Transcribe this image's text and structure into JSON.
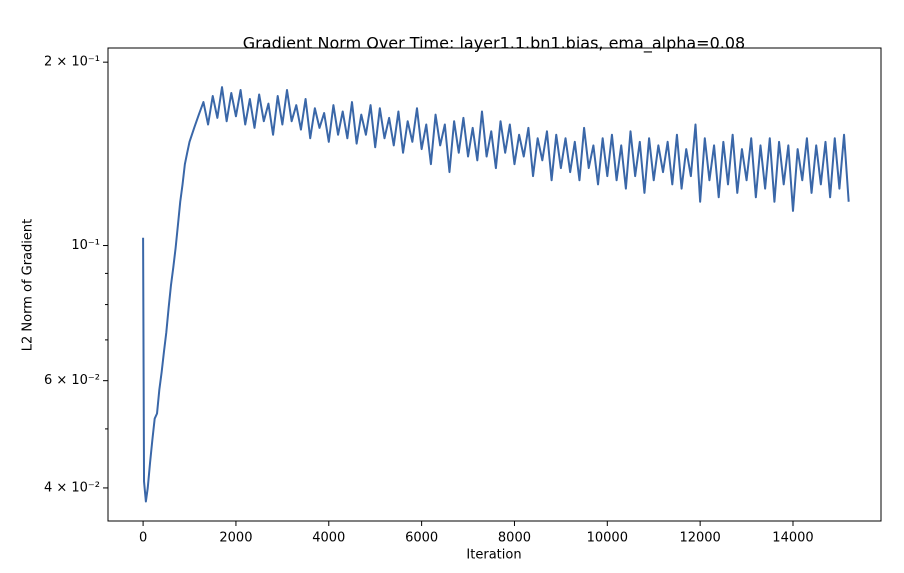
{
  "chart_data": {
    "type": "line",
    "title": "Gradient Norm Over Time: layer1.1.bn1.bias, ema_alpha=0.08",
    "xlabel": "Iteration",
    "ylabel": "L2 Norm of Gradient",
    "color": "#3a67a8",
    "yscale": "log",
    "xlim": [
      -756,
      15896
    ],
    "ylim": [
      0.0353,
      0.211
    ],
    "xticks": [
      0,
      2000,
      4000,
      6000,
      8000,
      10000,
      12000,
      14000
    ],
    "yticks": [
      {
        "value": 0.04,
        "label": "4 × 10⁻²"
      },
      {
        "value": 0.06,
        "label": "6 × 10⁻²"
      },
      {
        "value": 0.1,
        "label": "10⁻¹"
      },
      {
        "value": 0.2,
        "label": "2 × 10⁻¹"
      }
    ],
    "yminorticks": [
      0.05,
      0.07,
      0.08,
      0.09
    ],
    "x": [
      0,
      20,
      60,
      100,
      150,
      200,
      250,
      300,
      350,
      400,
      450,
      500,
      550,
      600,
      650,
      700,
      750,
      800,
      850,
      900,
      950,
      1000,
      1100,
      1200,
      1300,
      1400,
      1500,
      1600,
      1700,
      1800,
      1900,
      2000,
      2100,
      2200,
      2300,
      2400,
      2500,
      2600,
      2700,
      2800,
      2900,
      3000,
      3100,
      3200,
      3300,
      3400,
      3500,
      3600,
      3700,
      3800,
      3900,
      4000,
      4100,
      4200,
      4300,
      4400,
      4500,
      4600,
      4700,
      4800,
      4900,
      5000,
      5100,
      5200,
      5300,
      5400,
      5500,
      5600,
      5700,
      5800,
      5900,
      6000,
      6100,
      6200,
      6300,
      6400,
      6500,
      6600,
      6700,
      6800,
      6900,
      7000,
      7100,
      7200,
      7300,
      7400,
      7500,
      7600,
      7700,
      7800,
      7900,
      8000,
      8100,
      8200,
      8300,
      8400,
      8500,
      8600,
      8700,
      8800,
      8900,
      9000,
      9100,
      9200,
      9300,
      9400,
      9500,
      9600,
      9700,
      9800,
      9900,
      10000,
      10100,
      10200,
      10300,
      10400,
      10500,
      10600,
      10700,
      10800,
      10900,
      11000,
      11100,
      11200,
      11300,
      11400,
      11500,
      11600,
      11700,
      11800,
      11900,
      12000,
      12100,
      12200,
      12300,
      12400,
      12500,
      12600,
      12700,
      12800,
      12900,
      13000,
      13100,
      13200,
      13300,
      13400,
      13500,
      13600,
      13700,
      13800,
      13900,
      14000,
      14100,
      14200,
      14300,
      14400,
      14500,
      14600,
      14700,
      14800,
      14900,
      15000,
      15100,
      15200
    ],
    "values": [
      0.103,
      0.041,
      0.038,
      0.04,
      0.044,
      0.048,
      0.052,
      0.053,
      0.058,
      0.062,
      0.067,
      0.072,
      0.079,
      0.086,
      0.092,
      0.099,
      0.108,
      0.118,
      0.126,
      0.136,
      0.142,
      0.148,
      0.156,
      0.164,
      0.172,
      0.158,
      0.176,
      0.162,
      0.182,
      0.16,
      0.178,
      0.163,
      0.18,
      0.158,
      0.174,
      0.156,
      0.177,
      0.16,
      0.171,
      0.152,
      0.176,
      0.158,
      0.18,
      0.16,
      0.17,
      0.155,
      0.174,
      0.15,
      0.168,
      0.156,
      0.165,
      0.148,
      0.17,
      0.152,
      0.166,
      0.15,
      0.172,
      0.147,
      0.164,
      0.152,
      0.17,
      0.145,
      0.168,
      0.15,
      0.162,
      0.146,
      0.166,
      0.142,
      0.16,
      0.148,
      0.168,
      0.144,
      0.158,
      0.136,
      0.164,
      0.146,
      0.158,
      0.132,
      0.16,
      0.142,
      0.162,
      0.14,
      0.156,
      0.138,
      0.166,
      0.14,
      0.154,
      0.134,
      0.16,
      0.142,
      0.158,
      0.136,
      0.152,
      0.14,
      0.156,
      0.13,
      0.15,
      0.138,
      0.154,
      0.128,
      0.152,
      0.134,
      0.15,
      0.132,
      0.148,
      0.128,
      0.156,
      0.134,
      0.146,
      0.126,
      0.15,
      0.13,
      0.152,
      0.128,
      0.146,
      0.124,
      0.154,
      0.13,
      0.148,
      0.122,
      0.15,
      0.128,
      0.146,
      0.132,
      0.148,
      0.126,
      0.152,
      0.124,
      0.144,
      0.13,
      0.158,
      0.118,
      0.15,
      0.128,
      0.146,
      0.12,
      0.148,
      0.126,
      0.152,
      0.122,
      0.144,
      0.128,
      0.15,
      0.12,
      0.146,
      0.124,
      0.15,
      0.118,
      0.148,
      0.126,
      0.146,
      0.114,
      0.144,
      0.128,
      0.15,
      0.122,
      0.146,
      0.126,
      0.148,
      0.12,
      0.15,
      0.124,
      0.152,
      0.118
    ]
  }
}
